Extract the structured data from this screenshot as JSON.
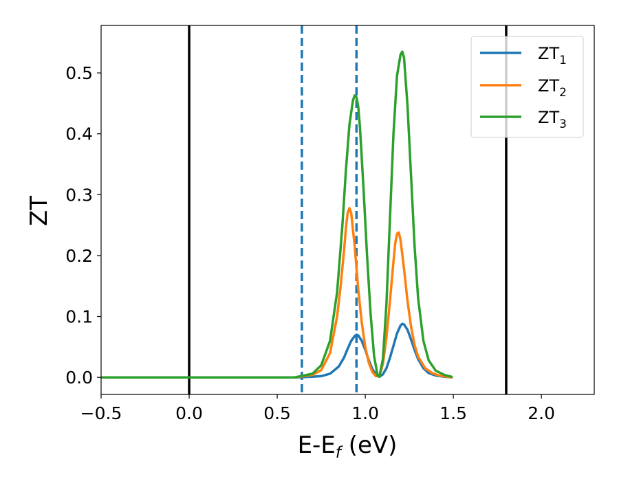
{
  "chart_data": {
    "type": "line",
    "title": "",
    "xlabel": {
      "main": "E-E",
      "sub": "f",
      "suffix": " (eV)"
    },
    "ylabel": "ZT",
    "xlim": [
      -0.5,
      2.3
    ],
    "ylim": [
      -0.028,
      0.578
    ],
    "grid": false,
    "legend_position": "top-right",
    "x_ticks": [
      {
        "value": -0.5,
        "label": "−0.5"
      },
      {
        "value": 0.0,
        "label": "0.0"
      },
      {
        "value": 0.5,
        "label": "0.5"
      },
      {
        "value": 1.0,
        "label": "1.0"
      },
      {
        "value": 1.5,
        "label": "1.5"
      },
      {
        "value": 2.0,
        "label": "2.0"
      }
    ],
    "y_ticks": [
      {
        "value": 0.0,
        "label": "0.0"
      },
      {
        "value": 0.1,
        "label": "0.1"
      },
      {
        "value": 0.2,
        "label": "0.2"
      },
      {
        "value": 0.3,
        "label": "0.3"
      },
      {
        "value": 0.4,
        "label": "0.4"
      },
      {
        "value": 0.5,
        "label": "0.5"
      }
    ],
    "vlines": [
      {
        "x": 0.0,
        "style": "solid",
        "color": "#000000"
      },
      {
        "x": 1.8,
        "style": "solid",
        "color": "#000000"
      },
      {
        "x": 0.64,
        "style": "dashed",
        "color": "#1f77b4"
      },
      {
        "x": 0.95,
        "style": "dashed",
        "color": "#1f77b4"
      }
    ],
    "series": [
      {
        "name": "ZT",
        "sub": "1",
        "color": "#1f77b4",
        "x": [
          -0.5,
          0.6,
          0.7,
          0.75,
          0.8,
          0.85,
          0.88,
          0.9,
          0.92,
          0.94,
          0.95,
          0.96,
          0.98,
          1.0,
          1.02,
          1.04,
          1.06,
          1.08,
          1.1,
          1.12,
          1.14,
          1.16,
          1.18,
          1.2,
          1.21,
          1.22,
          1.24,
          1.26,
          1.28,
          1.3,
          1.33,
          1.36,
          1.4,
          1.45,
          1.49
        ],
        "y": [
          0.0,
          0.0,
          0.001,
          0.002,
          0.006,
          0.018,
          0.033,
          0.047,
          0.06,
          0.068,
          0.07,
          0.069,
          0.06,
          0.045,
          0.028,
          0.014,
          0.005,
          0.001,
          0.005,
          0.015,
          0.032,
          0.052,
          0.072,
          0.085,
          0.088,
          0.087,
          0.078,
          0.062,
          0.045,
          0.03,
          0.015,
          0.007,
          0.003,
          0.001,
          0.0
        ]
      },
      {
        "name": "ZT",
        "sub": "2",
        "color": "#ff7f0e",
        "x": [
          -0.5,
          0.6,
          0.7,
          0.75,
          0.8,
          0.84,
          0.86,
          0.88,
          0.89,
          0.9,
          0.91,
          0.92,
          0.94,
          0.96,
          0.98,
          1.0,
          1.02,
          1.04,
          1.06,
          1.08,
          1.1,
          1.12,
          1.14,
          1.16,
          1.17,
          1.18,
          1.19,
          1.2,
          1.22,
          1.24,
          1.26,
          1.28,
          1.3,
          1.34,
          1.38,
          1.42,
          1.49
        ],
        "y": [
          0.0,
          0.0,
          0.004,
          0.012,
          0.04,
          0.1,
          0.15,
          0.21,
          0.245,
          0.27,
          0.278,
          0.27,
          0.215,
          0.145,
          0.09,
          0.05,
          0.024,
          0.009,
          0.002,
          0.002,
          0.022,
          0.065,
          0.125,
          0.19,
          0.22,
          0.236,
          0.238,
          0.226,
          0.178,
          0.125,
          0.083,
          0.053,
          0.034,
          0.015,
          0.007,
          0.003,
          0.0
        ]
      },
      {
        "name": "ZT",
        "sub": "3",
        "color": "#2ca02c",
        "x": [
          -0.5,
          0.6,
          0.7,
          0.75,
          0.8,
          0.84,
          0.87,
          0.89,
          0.91,
          0.93,
          0.94,
          0.95,
          0.96,
          0.97,
          0.99,
          1.01,
          1.03,
          1.05,
          1.07,
          1.08,
          1.1,
          1.12,
          1.14,
          1.16,
          1.18,
          1.2,
          1.21,
          1.22,
          1.24,
          1.26,
          1.28,
          1.3,
          1.33,
          1.36,
          1.4,
          1.45,
          1.49
        ],
        "y": [
          0.0,
          0.0,
          0.006,
          0.02,
          0.06,
          0.14,
          0.25,
          0.34,
          0.415,
          0.455,
          0.463,
          0.46,
          0.445,
          0.41,
          0.31,
          0.2,
          0.105,
          0.035,
          0.003,
          0.001,
          0.03,
          0.12,
          0.26,
          0.4,
          0.495,
          0.53,
          0.535,
          0.525,
          0.445,
          0.33,
          0.215,
          0.13,
          0.06,
          0.028,
          0.011,
          0.004,
          0.001
        ]
      }
    ]
  }
}
